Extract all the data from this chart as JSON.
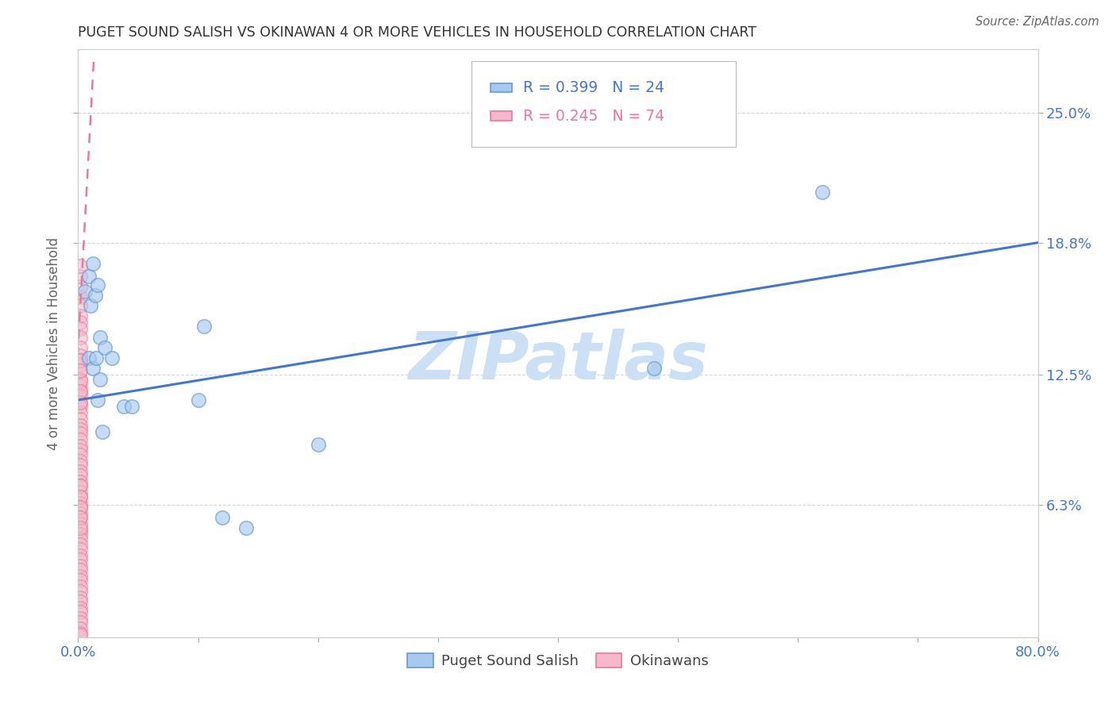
{
  "title": "PUGET SOUND SALISH VS OKINAWAN 4 OR MORE VEHICLES IN HOUSEHOLD CORRELATION CHART",
  "source": "Source: ZipAtlas.com",
  "ylabel": "4 or more Vehicles in Household",
  "ytick_vals": [
    0.063,
    0.125,
    0.188,
    0.25
  ],
  "ytick_labels_right": [
    "6.3%",
    "12.5%",
    "18.8%",
    "25.0%"
  ],
  "xlim": [
    0.0,
    0.8
  ],
  "ylim": [
    0.0,
    0.28
  ],
  "xtick_positions": [
    0.0,
    0.1,
    0.2,
    0.3,
    0.4,
    0.5,
    0.6,
    0.7,
    0.8
  ],
  "xtick_labels": [
    "0.0%",
    "",
    "",
    "",
    "",
    "",
    "",
    "",
    "80.0%"
  ],
  "legend1_label": "Puget Sound Salish",
  "legend2_label": "Okinawans",
  "R1": "0.399",
  "N1": "24",
  "R2": "0.245",
  "N2": "74",
  "watermark": "ZIPatlas",
  "puget_x": [
    0.006,
    0.009,
    0.012,
    0.01,
    0.014,
    0.016,
    0.018,
    0.009,
    0.012,
    0.015,
    0.018,
    0.022,
    0.028,
    0.016,
    0.02,
    0.038,
    0.045,
    0.62,
    0.48,
    0.12,
    0.14,
    0.2,
    0.1,
    0.105
  ],
  "puget_y": [
    0.165,
    0.172,
    0.178,
    0.158,
    0.163,
    0.168,
    0.143,
    0.133,
    0.128,
    0.133,
    0.123,
    0.138,
    0.133,
    0.113,
    0.098,
    0.11,
    0.11,
    0.212,
    0.128,
    0.057,
    0.052,
    0.092,
    0.113,
    0.148
  ],
  "okinawa_x": [
    0.002,
    0.002,
    0.002,
    0.002,
    0.002,
    0.002,
    0.002,
    0.002,
    0.002,
    0.002,
    0.002,
    0.002,
    0.002,
    0.002,
    0.002,
    0.002,
    0.002,
    0.002,
    0.002,
    0.002,
    0.002,
    0.002,
    0.002,
    0.002,
    0.002,
    0.002,
    0.002,
    0.002,
    0.002,
    0.002,
    0.002,
    0.002,
    0.002,
    0.002,
    0.002,
    0.002,
    0.002,
    0.002,
    0.002,
    0.002,
    0.002,
    0.002,
    0.002,
    0.002,
    0.002,
    0.002,
    0.002,
    0.002,
    0.002,
    0.002,
    0.002,
    0.002,
    0.002,
    0.002,
    0.002,
    0.002,
    0.002,
    0.002,
    0.002,
    0.002,
    0.002,
    0.002,
    0.002,
    0.002,
    0.002,
    0.002,
    0.002,
    0.002,
    0.002,
    0.002,
    0.002,
    0.002,
    0.002,
    0.002
  ],
  "okinawa_y": [
    0.162,
    0.158,
    0.153,
    0.15,
    0.147,
    0.143,
    0.138,
    0.134,
    0.132,
    0.13,
    0.127,
    0.123,
    0.12,
    0.117,
    0.115,
    0.112,
    0.11,
    0.107,
    0.104,
    0.101,
    0.099,
    0.097,
    0.094,
    0.091,
    0.089,
    0.087,
    0.084,
    0.082,
    0.079,
    0.077,
    0.074,
    0.072,
    0.069,
    0.067,
    0.064,
    0.062,
    0.059,
    0.057,
    0.054,
    0.051,
    0.049,
    0.047,
    0.044,
    0.042,
    0.039,
    0.037,
    0.034,
    0.032,
    0.029,
    0.027,
    0.024,
    0.022,
    0.019,
    0.017,
    0.014,
    0.012,
    0.009,
    0.007,
    0.004,
    0.002,
    0.001,
    0.167,
    0.172,
    0.177,
    0.132,
    0.122,
    0.127,
    0.112,
    0.117,
    0.072,
    0.067,
    0.062,
    0.057,
    0.052
  ],
  "puget_color": "#a8c8f0",
  "puget_edge_color": "#6699cc",
  "okinawa_color": "#f5b8cc",
  "okinawa_edge_color": "#e87898",
  "trend_blue_color": "#4477cc",
  "trend_pink_color": "#e878a0",
  "grid_color": "#cccccc",
  "title_color": "#333333",
  "tick_label_color": "#4477cc",
  "ylabel_color": "#666666",
  "source_color": "#666666",
  "watermark_color": "#cce0f5",
  "blue_trend_x": [
    0.0,
    0.8
  ],
  "blue_trend_y": [
    0.113,
    0.188
  ],
  "pink_trend_x": [
    -0.003,
    0.013
  ],
  "pink_trend_y": [
    0.108,
    0.275
  ]
}
